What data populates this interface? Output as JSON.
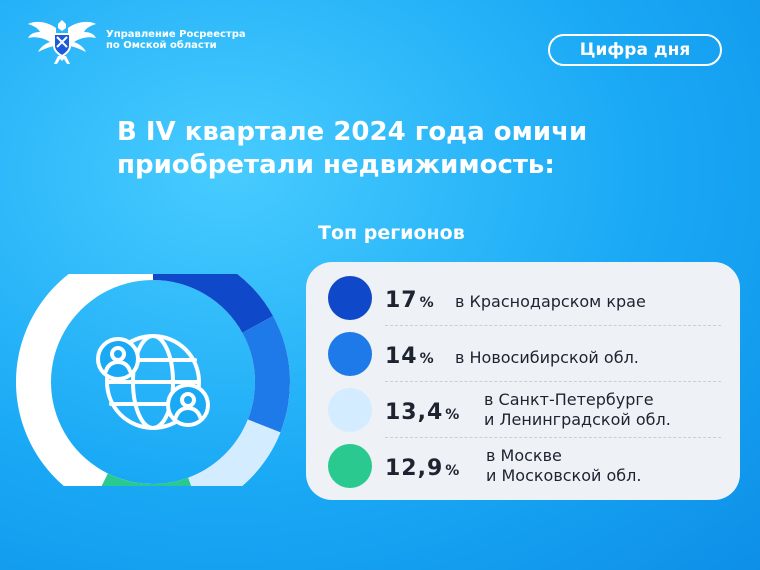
{
  "organization": {
    "name_line1": "Управление Росреестра",
    "name_line2": "по Омской области"
  },
  "badge": "Цифра дня",
  "headline": {
    "line1": "В IV квартале 2024 года омичи",
    "line2": "приобретали недвижимость:"
  },
  "subtitle": "Топ регионов",
  "chart_data": {
    "type": "pie",
    "variant": "donut",
    "categories": [
      "в Краснодарском крае",
      "в Новосибирской обл.",
      "в Санкт-Петербурге и Ленинградской обл.",
      "в Москве и Московской обл."
    ],
    "values": [
      17,
      14,
      13.4,
      12.9
    ],
    "colors": [
      "#0f48c8",
      "#1e7ae8",
      "#d4ecff",
      "#29c98f"
    ],
    "remainder_color": "#ffffff"
  },
  "regions": [
    {
      "value": "17",
      "unit": "%",
      "line1": "в Краснодарском крае",
      "line2": "",
      "color": "#0f48c8"
    },
    {
      "value": "14",
      "unit": "%",
      "line1": "в Новосибирской обл.",
      "line2": "",
      "color": "#1e7ae8"
    },
    {
      "value": "13,4",
      "unit": "%",
      "line1": "в Санкт-Петербурге",
      "line2": "и Ленинградской обл.",
      "color": "#d4ecff"
    },
    {
      "value": "12,9",
      "unit": "%",
      "line1": "в Москве",
      "line2": "и Московской обл.",
      "color": "#29c98f"
    }
  ],
  "icons": {
    "logo": "eagle-emblem-icon",
    "center": "globe-people-icon"
  }
}
